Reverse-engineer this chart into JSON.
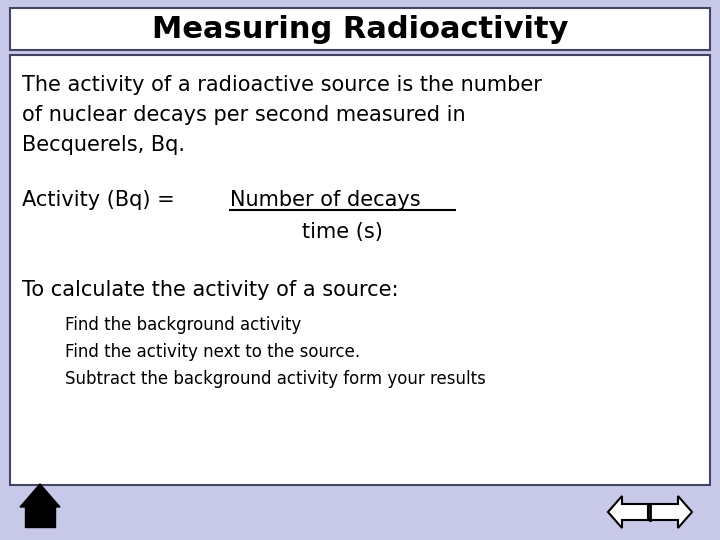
{
  "bg_color": "#c8c8e8",
  "title_box_color": "#ffffff",
  "content_box_color": "#ffffff",
  "title": "Measuring Radioactivity",
  "title_fontsize": 22,
  "content_fontsize": 15,
  "small_fontsize": 12,
  "font_family": "Comic Sans MS",
  "text_color": "#000000",
  "line1": "The activity of a radioactive source is the number",
  "line2": "of nuclear decays per second measured in",
  "line3": "Becquerels, Bq.",
  "formula_prefix": "Activity (Bq) = ",
  "formula_numerator": "Number of decays",
  "formula_denominator": "time (s)",
  "calc_header": "To calculate the activity of a source:",
  "bullet1": "Find the background activity",
  "bullet2": "Find the activity next to the source.",
  "bullet3": "Subtract the background activity form your results"
}
